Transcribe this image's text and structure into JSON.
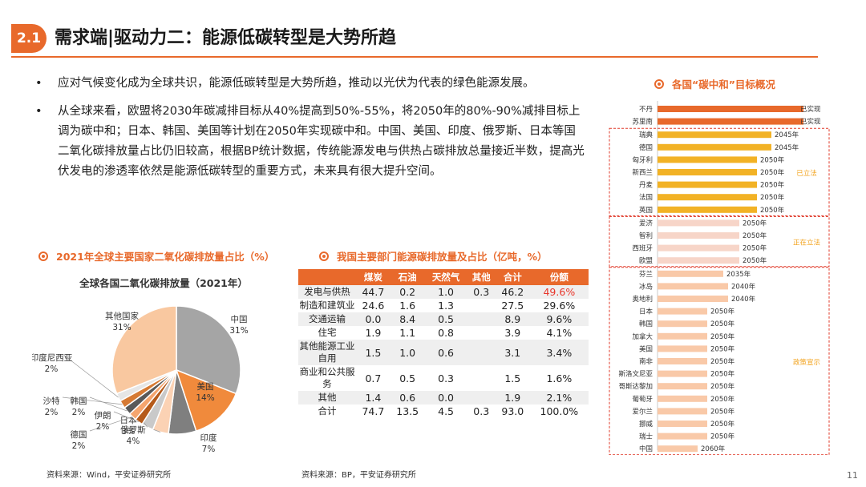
{
  "header": {
    "section": "2.1",
    "title": "需求端|驱动力二：能源低碳转型是大势所趋"
  },
  "bullets": [
    "应对气候变化成为全球共识，能源低碳转型是大势所趋，推动以光伏为代表的绿色能源发展。",
    "从全球来看，欧盟将2030年碳减排目标从40%提高到50%-55%，将2050年的80%-90%减排目标上调为碳中和；日本、韩国、美国等计划在2050年实现碳中和。中国、美国、印度、俄罗斯、日本等国二氧化碳排放量占比仍旧较高，根据BP统计数据，传统能源发电与供热占碳排放总量接近半数，提高光伏发电的渗透率依然是能源低碳转型的重要方式，未来具有很大提升空间。"
  ],
  "pie_section": {
    "heading": "2021年全球主要国家二氧化碳排放量占比（%）",
    "source": "资料来源：Wind，平安证券研究所"
  },
  "table_section": {
    "heading": "我国主要部门能源碳排放量及占比（亿吨，%）",
    "source": "资料来源：BP，平安证券研究所"
  },
  "bar_section": {
    "heading": "各国“碳中和”目标概况"
  },
  "page_number": "11",
  "chart_data": [
    {
      "type": "pie",
      "title": "全球各国二氧化碳排放量（2021年）",
      "slices": [
        {
          "label": "中国",
          "value": 31,
          "display": "31%",
          "color": "#a5a5a5"
        },
        {
          "label": "美国",
          "value": 14,
          "display": "14%",
          "color": "#f08a3c"
        },
        {
          "label": "印度",
          "value": 7,
          "display": "7%",
          "color": "#7f7f7f"
        },
        {
          "label": "俄罗斯",
          "value": 4,
          "display": "4%",
          "color": "#fbd2b4"
        },
        {
          "label": "日本",
          "value": 3,
          "display": "3%",
          "color": "#c9c9c9"
        },
        {
          "label": "伊朗",
          "value": 2,
          "display": "2%",
          "color": "#b55a1a"
        },
        {
          "label": "德国",
          "value": 2,
          "display": "2%",
          "color": "#f5a56e"
        },
        {
          "label": "韩国",
          "value": 2,
          "display": "2%",
          "color": "#595959"
        },
        {
          "label": "沙特",
          "value": 2,
          "display": "2%",
          "color": "#d67a34"
        },
        {
          "label": "印度尼西亚",
          "value": 2,
          "display": "2%",
          "color": "#e6e6e6"
        },
        {
          "label": "其他国家",
          "value": 31,
          "display": "31%",
          "color": "#f9c8a0"
        }
      ]
    },
    {
      "type": "table",
      "columns": [
        "",
        "煤炭",
        "石油",
        "天然气",
        "其他",
        "合计",
        "份额"
      ],
      "rows": [
        [
          "发电与供热",
          "44.7",
          "0.2",
          "1.0",
          "0.3",
          "46.2",
          "49.6%"
        ],
        [
          "制造和建筑业",
          "24.6",
          "1.6",
          "1.3",
          "",
          "27.5",
          "29.6%"
        ],
        [
          "交通运输",
          "0.0",
          "8.4",
          "0.5",
          "",
          "8.9",
          "9.6%"
        ],
        [
          "住宅",
          "1.9",
          "1.1",
          "0.8",
          "",
          "3.9",
          "4.1%"
        ],
        [
          "其他能源工业自用",
          "1.5",
          "1.0",
          "0.6",
          "",
          "3.1",
          "3.4%"
        ],
        [
          "商业和公共服务",
          "0.7",
          "0.5",
          "0.3",
          "",
          "1.5",
          "1.6%"
        ],
        [
          "其他",
          "1.4",
          "0.6",
          "0.0",
          "",
          "1.9",
          "2.1%"
        ],
        [
          "合计",
          "74.7",
          "13.5",
          "4.5",
          "0.3",
          "93.0",
          "100.0%"
        ]
      ]
    },
    {
      "type": "bar",
      "orientation": "horizontal",
      "groups": [
        {
          "status": "",
          "items": [
            {
              "country": "不丹",
              "label": "已实现",
              "value": 2021
            },
            {
              "country": "苏里南",
              "label": "已实现",
              "value": 2021
            }
          ]
        },
        {
          "status": "已立法",
          "items": [
            {
              "country": "瑞典",
              "label": "2045年",
              "value": 2045
            },
            {
              "country": "德国",
              "label": "2045年",
              "value": 2045
            },
            {
              "country": "匈牙利",
              "label": "2050年",
              "value": 2050
            },
            {
              "country": "新西兰",
              "label": "2050年",
              "value": 2050
            },
            {
              "country": "丹麦",
              "label": "2050年",
              "value": 2050
            },
            {
              "country": "法国",
              "label": "2050年",
              "value": 2050
            },
            {
              "country": "英国",
              "label": "2050年",
              "value": 2050
            }
          ]
        },
        {
          "status": "正在立法",
          "items": [
            {
              "country": "爱济",
              "label": "2050年",
              "value": 2050
            },
            {
              "country": "智利",
              "label": "2050年",
              "value": 2050
            },
            {
              "country": "西班牙",
              "label": "2050年",
              "value": 2050
            },
            {
              "country": "欧盟",
              "label": "2050年",
              "value": 2050
            }
          ]
        },
        {
          "status": "政策宣示",
          "items": [
            {
              "country": "芬兰",
              "label": "2035年",
              "value": 2035
            },
            {
              "country": "冰岛",
              "label": "2040年",
              "value": 2040
            },
            {
              "country": "奥地利",
              "label": "2040年",
              "value": 2040
            },
            {
              "country": "日本",
              "label": "2050年",
              "value": 2050
            },
            {
              "country": "韩国",
              "label": "2050年",
              "value": 2050
            },
            {
              "country": "加拿大",
              "label": "2050年",
              "value": 2050
            },
            {
              "country": "美国",
              "label": "2050年",
              "value": 2050
            },
            {
              "country": "南非",
              "label": "2050年",
              "value": 2050
            },
            {
              "country": "斯洛文尼亚",
              "label": "2050年",
              "value": 2050
            },
            {
              "country": "哥斯达黎加",
              "label": "2050年",
              "value": 2050
            },
            {
              "country": "葡萄牙",
              "label": "2050年",
              "value": 2050
            },
            {
              "country": "爱尔兰",
              "label": "2050年",
              "value": 2050
            },
            {
              "country": "挪威",
              "label": "2050年",
              "value": 2050
            },
            {
              "country": "瑞士",
              "label": "2050年",
              "value": 2050
            },
            {
              "country": "中国",
              "label": "2060年",
              "value": 2060
            }
          ]
        }
      ],
      "colors": {
        "achieved": "#e8692b",
        "legislated": "#f2b225",
        "legislating": "#f7d5c8",
        "declared": "#f9c9a8",
        "status_text": "#f2a21b"
      }
    }
  ]
}
